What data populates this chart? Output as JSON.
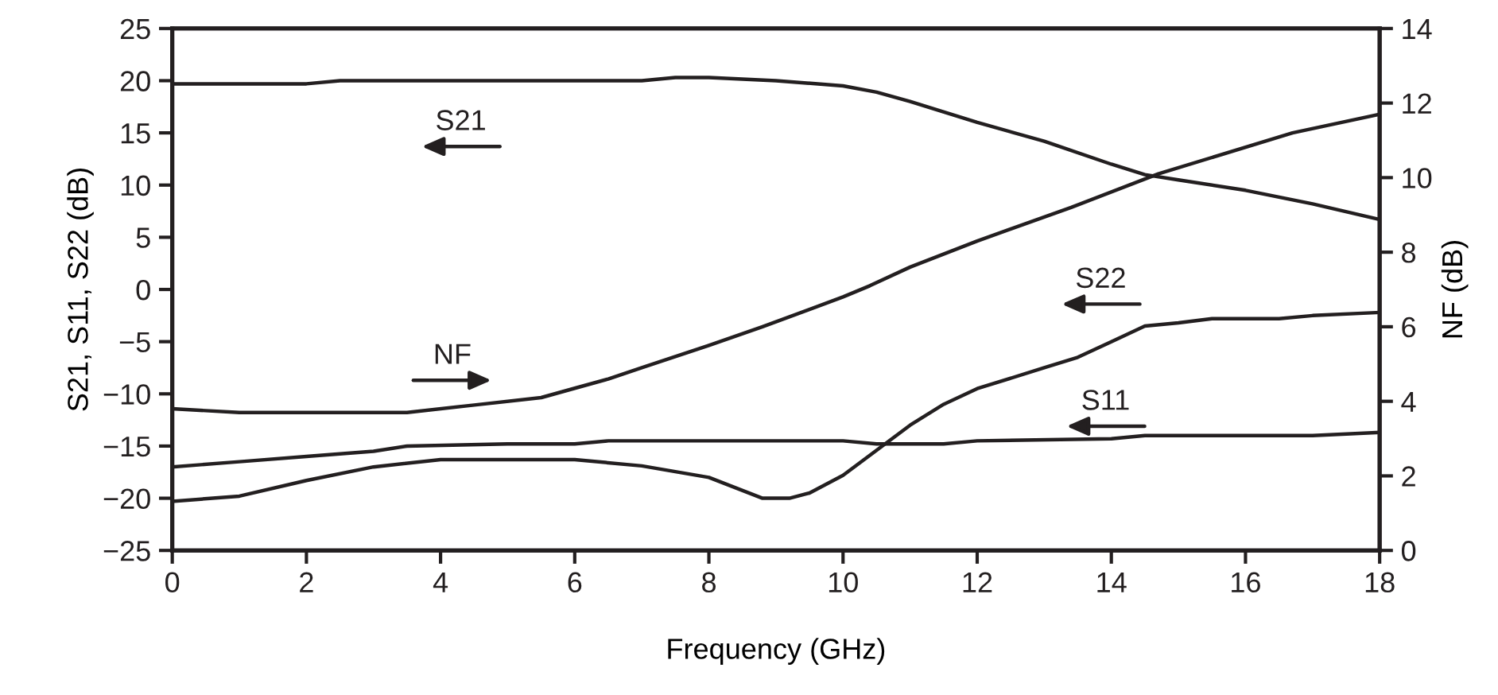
{
  "chart_data": {
    "type": "line",
    "xlabel": "Frequency (GHz)",
    "ylabel": "S21, S11, S22 (dB)",
    "y2label": "NF (dB)",
    "xlim": [
      0,
      18
    ],
    "xticks": [
      0,
      2,
      4,
      6,
      8,
      10,
      12,
      14,
      16,
      18
    ],
    "ylim": [
      -25,
      25
    ],
    "yticks": [
      -25,
      -20,
      -15,
      -10,
      -5,
      0,
      5,
      10,
      15,
      20,
      25
    ],
    "y2lim": [
      0,
      14
    ],
    "y2ticks": [
      0,
      2,
      4,
      6,
      8,
      10,
      12,
      14
    ],
    "grid": false,
    "legend": false,
    "marker": "none",
    "line_style": "solid",
    "series": [
      {
        "name": "S21",
        "color": "#231f20",
        "x": [
          0,
          1,
          2,
          2.5,
          3,
          4,
          5,
          6,
          7,
          7.5,
          8,
          9,
          10,
          10.5,
          11,
          12,
          13,
          14,
          14.5,
          15,
          16,
          17,
          18
        ],
        "values": [
          19.7,
          19.7,
          19.7,
          20,
          20,
          20,
          20,
          20,
          20,
          20.3,
          20.3,
          20,
          19.5,
          18.9,
          18,
          16,
          14.2,
          12,
          11,
          10.5,
          9.5,
          8.2,
          6.7
        ]
      },
      {
        "name": "S11",
        "color": "#231f20",
        "x": [
          0,
          1,
          2,
          3,
          3.5,
          5,
          6,
          6.5,
          10,
          10.5,
          11.5,
          12,
          14,
          14.5,
          17,
          18
        ],
        "values": [
          -17,
          -16.5,
          -16,
          -15.5,
          -15,
          -14.8,
          -14.8,
          -14.5,
          -14.5,
          -14.8,
          -14.8,
          -14.5,
          -14.3,
          -14,
          -14,
          -13.7
        ]
      },
      {
        "name": "S22",
        "color": "#231f20",
        "x": [
          0,
          1,
          2,
          3,
          4,
          6,
          7,
          8,
          8.8,
          9.2,
          9.5,
          10,
          11,
          11.5,
          12,
          13,
          13.5,
          14,
          14.5,
          15,
          15.5,
          16.5,
          17,
          18
        ],
        "values": [
          -20.3,
          -19.8,
          -18.3,
          -17,
          -16.3,
          -16.3,
          -16.9,
          -18,
          -20,
          -20,
          -19.5,
          -17.8,
          -13,
          -11,
          -9.5,
          -7.5,
          -6.5,
          -5,
          -3.5,
          -3.2,
          -2.8,
          -2.8,
          -2.5,
          -2.2
        ]
      },
      {
        "name": "NF",
        "color": "#231f20",
        "axis": "y2",
        "x": [
          0,
          1,
          3.5,
          4.5,
          5.5,
          6,
          6.5,
          7,
          8,
          8.8,
          10,
          10.4,
          11,
          12,
          13.4,
          14.7,
          16.7,
          18
        ],
        "values": [
          3.8,
          3.7,
          3.7,
          3.9,
          4.1,
          4.35,
          4.6,
          4.9,
          5.5,
          6.0,
          6.8,
          7.1,
          7.6,
          8.3,
          9.2,
          10.1,
          11.2,
          11.7
        ]
      }
    ]
  }
}
